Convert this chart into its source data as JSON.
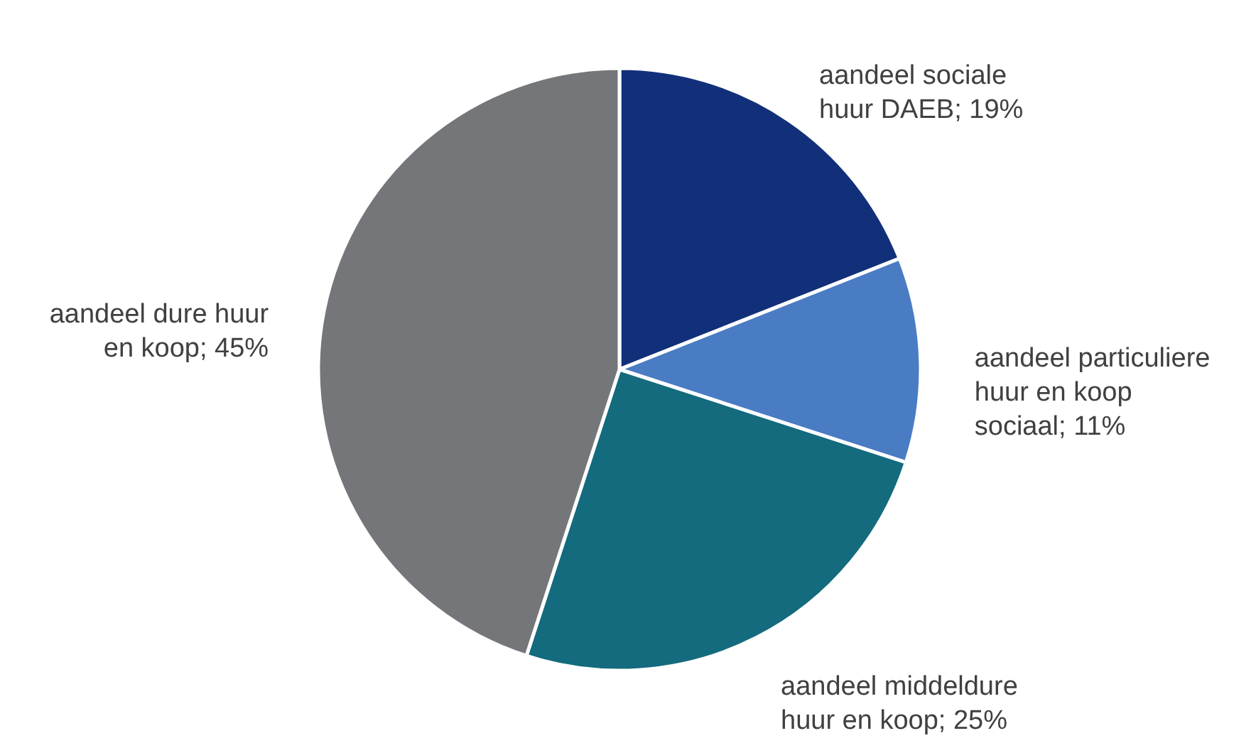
{
  "chart_data": {
    "type": "pie",
    "categories": [
      "aandeel sociale huur DAEB",
      "aandeel particuliere huur en koop sociaal",
      "aandeel middeldure huur en koop",
      "aandeel dure huur en koop"
    ],
    "values": [
      19,
      11,
      25,
      45
    ],
    "value_labels": [
      "19%",
      "11%",
      "25%",
      "45%"
    ],
    "colors": [
      "#12307a",
      "#4a7cc4",
      "#136b7d",
      "#747679"
    ]
  }
}
